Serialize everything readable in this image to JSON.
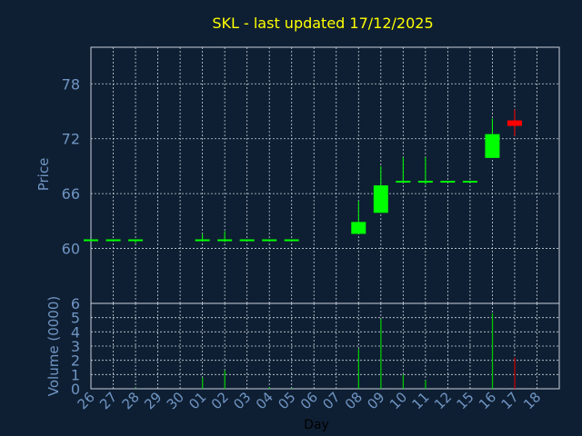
{
  "chart_data": {
    "type": "candlestick",
    "title": "SKL - last updated 17/12/2025",
    "price_panel": {
      "ylabel": "Price",
      "yticks": [
        60,
        66,
        72,
        78
      ],
      "ylim": [
        54,
        82
      ]
    },
    "volume_panel": {
      "ylabel": "Volume (0000)",
      "yticks": [
        0,
        1,
        2,
        3,
        4,
        5,
        6
      ],
      "ylim": [
        0,
        6
      ]
    },
    "xlabel": "Day",
    "x_ticks": [
      "26",
      "27",
      "28",
      "29",
      "30",
      "01",
      "02",
      "03",
      "04",
      "05",
      "06",
      "07",
      "08",
      "09",
      "10",
      "11",
      "12",
      "15",
      "16",
      "17",
      "18"
    ],
    "grid": true,
    "colors": {
      "background": "#0f1f33",
      "title": "#ffff00",
      "axis_text": "#6f95c3",
      "grid": "#c8d2dc",
      "up": "#00ff00",
      "down": "#ff0000",
      "volume_up": "#00cc00",
      "volume_down": "#cc0000"
    },
    "candles": [
      {
        "day": "26",
        "open": 60.9,
        "high": 60.9,
        "low": 60.9,
        "close": 60.9,
        "volume": 0
      },
      {
        "day": "27",
        "open": 60.9,
        "high": 60.9,
        "low": 60.9,
        "close": 60.9,
        "volume": 0
      },
      {
        "day": "28",
        "open": 60.9,
        "high": 60.9,
        "low": 60.6,
        "close": 60.9,
        "volume": 0.05
      },
      {
        "day": "01",
        "open": 60.9,
        "high": 61.6,
        "low": 60.9,
        "close": 60.9,
        "volume": 0.8
      },
      {
        "day": "02",
        "open": 60.9,
        "high": 61.9,
        "low": 60.7,
        "close": 60.9,
        "volume": 1.3
      },
      {
        "day": "03",
        "open": 60.9,
        "high": 60.9,
        "low": 60.9,
        "close": 60.9,
        "volume": 0
      },
      {
        "day": "04",
        "open": 60.9,
        "high": 60.9,
        "low": 60.8,
        "close": 60.9,
        "volume": 0.1
      },
      {
        "day": "05",
        "open": 60.9,
        "high": 60.9,
        "low": 60.9,
        "close": 60.9,
        "volume": 0.05
      },
      {
        "day": "08",
        "open": 61.6,
        "high": 65.2,
        "low": 61.6,
        "close": 62.9,
        "volume": 2.8
      },
      {
        "day": "09",
        "open": 63.9,
        "high": 69.0,
        "low": 63.9,
        "close": 66.9,
        "volume": 4.9
      },
      {
        "day": "10",
        "open": 67.3,
        "high": 70.0,
        "low": 67.3,
        "close": 67.3,
        "volume": 1.0
      },
      {
        "day": "11",
        "open": 67.3,
        "high": 70.0,
        "low": 67.0,
        "close": 67.3,
        "volume": 0.6
      },
      {
        "day": "12",
        "open": 67.3,
        "high": 67.3,
        "low": 67.3,
        "close": 67.3,
        "volume": 0
      },
      {
        "day": "15",
        "open": 67.3,
        "high": 67.3,
        "low": 67.3,
        "close": 67.3,
        "volume": 0
      },
      {
        "day": "16",
        "open": 69.9,
        "high": 74.2,
        "low": 69.9,
        "close": 72.5,
        "volume": 5.3
      },
      {
        "day": "17",
        "open": 74.0,
        "high": 75.2,
        "low": 72.3,
        "close": 73.4,
        "volume": 2.2
      }
    ]
  }
}
